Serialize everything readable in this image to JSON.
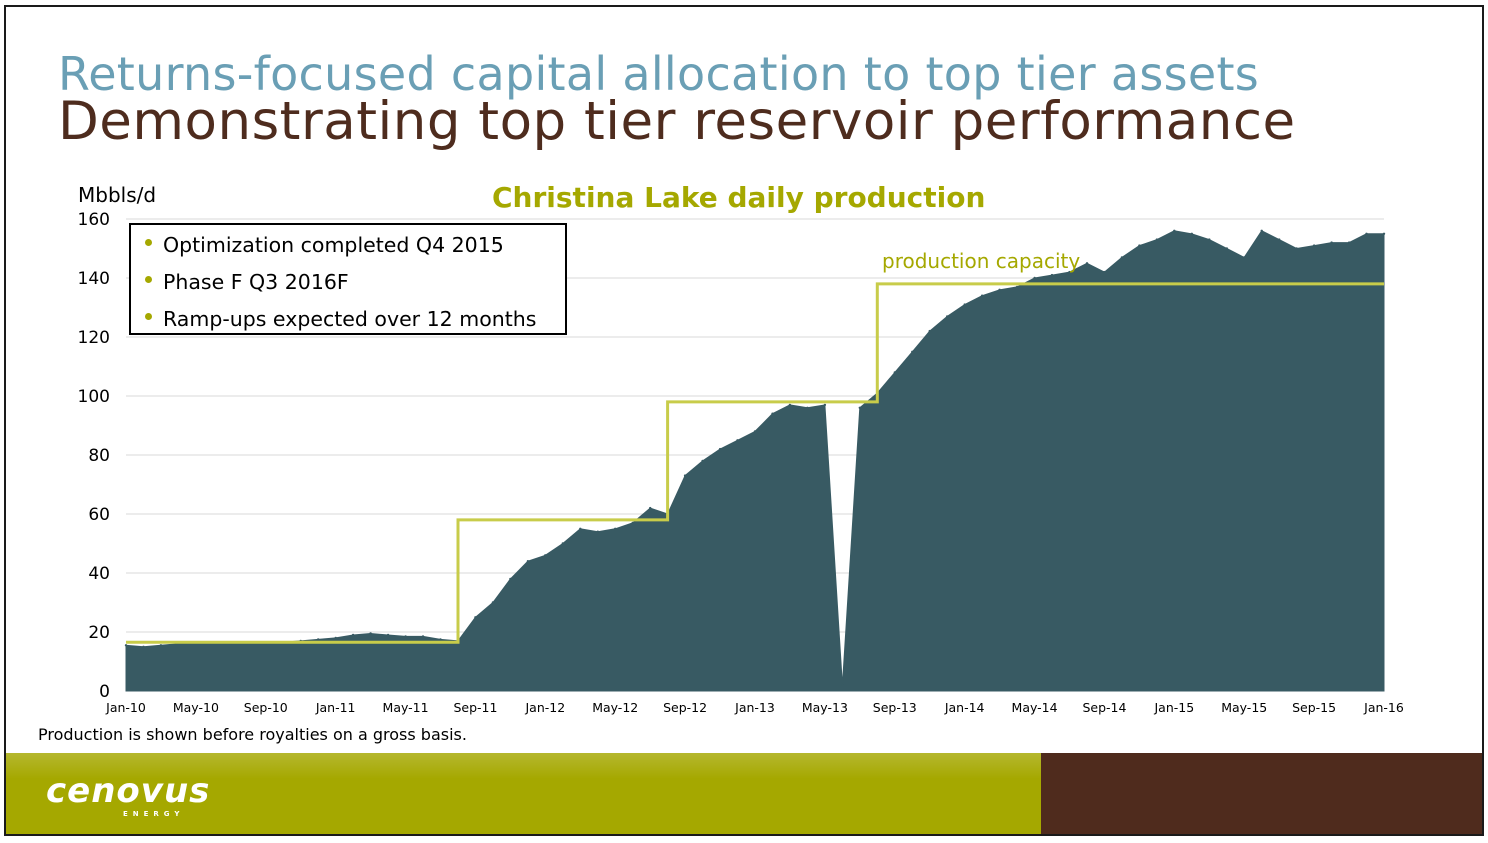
{
  "slide": {
    "supertitle": "Returns-focused capital allocation to top tier assets",
    "title": "Demonstrating top tier reservoir performance",
    "footnote": "Production is shown before royalties on a gross basis.",
    "logo_text": "cenovus",
    "logo_subtext": "ENERGY"
  },
  "colors": {
    "area": "#385a63",
    "capacity": "#c8cc4a",
    "supertitle": "#6a9fb5",
    "title": "#4e2c1e",
    "accent": "#a5a800",
    "footer_brown": "#4f2b1d"
  },
  "chart_data": {
    "type": "area",
    "title": "Christina Lake daily production",
    "ylabel": "Mbbls/d",
    "xlabel": "",
    "ylim": [
      0,
      160
    ],
    "xlim": [
      "2010-01",
      "2016-01"
    ],
    "yticks": [
      "0",
      "20",
      "40",
      "60",
      "80",
      "100",
      "120",
      "140",
      "160"
    ],
    "xticks": [
      "Jan-10",
      "May-10",
      "Sep-10",
      "Jan-11",
      "May-11",
      "Sep-11",
      "Jan-12",
      "May-12",
      "Sep-12",
      "Jan-13",
      "May-13",
      "Sep-13",
      "Jan-14",
      "May-14",
      "Sep-14",
      "Jan-15",
      "May-15",
      "Sep-15",
      "Jan-16"
    ],
    "grid": "horizontal",
    "legend": [
      "Optimization completed Q4 2015",
      "Phase F Q3 2016F",
      "Ramp-ups expected over 12 months"
    ],
    "annotations": [
      "production capacity"
    ],
    "series": [
      {
        "name": "Daily production",
        "points": [
          [
            "2010-01",
            15.5
          ],
          [
            "2010-02",
            15
          ],
          [
            "2010-03",
            15.5
          ],
          [
            "2010-04",
            16
          ],
          [
            "2010-05",
            16.5
          ],
          [
            "2010-06",
            16.5
          ],
          [
            "2010-07",
            16
          ],
          [
            "2010-08",
            16
          ],
          [
            "2010-09",
            16
          ],
          [
            "2010-10",
            16.5
          ],
          [
            "2010-11",
            17
          ],
          [
            "2010-12",
            17.5
          ],
          [
            "2011-01",
            18
          ],
          [
            "2011-02",
            19
          ],
          [
            "2011-03",
            19.5
          ],
          [
            "2011-04",
            19
          ],
          [
            "2011-05",
            18.5
          ],
          [
            "2011-06",
            18.5
          ],
          [
            "2011-07",
            17.5
          ],
          [
            "2011-08",
            17
          ],
          [
            "2011-09",
            25
          ],
          [
            "2011-10",
            30
          ],
          [
            "2011-11",
            38
          ],
          [
            "2011-12",
            44
          ],
          [
            "2012-01",
            46
          ],
          [
            "2012-02",
            50
          ],
          [
            "2012-03",
            55
          ],
          [
            "2012-04",
            54
          ],
          [
            "2012-05",
            55
          ],
          [
            "2012-06",
            57
          ],
          [
            "2012-07",
            62
          ],
          [
            "2012-08",
            60
          ],
          [
            "2012-09",
            73
          ],
          [
            "2012-10",
            78
          ],
          [
            "2012-11",
            82
          ],
          [
            "2012-12",
            85
          ],
          [
            "2013-01",
            88
          ],
          [
            "2013-02",
            94
          ],
          [
            "2013-03",
            97
          ],
          [
            "2013-04",
            96
          ],
          [
            "2013-05",
            97
          ],
          [
            "2013-06",
            2
          ],
          [
            "2013-07",
            96
          ],
          [
            "2013-08",
            101
          ],
          [
            "2013-09",
            108
          ],
          [
            "2013-10",
            115
          ],
          [
            "2013-11",
            122
          ],
          [
            "2013-12",
            127
          ],
          [
            "2014-01",
            131
          ],
          [
            "2014-02",
            134
          ],
          [
            "2014-03",
            136
          ],
          [
            "2014-04",
            137
          ],
          [
            "2014-05",
            140
          ],
          [
            "2014-06",
            141
          ],
          [
            "2014-07",
            142
          ],
          [
            "2014-08",
            145
          ],
          [
            "2014-09",
            142
          ],
          [
            "2014-10",
            147
          ],
          [
            "2014-11",
            151
          ],
          [
            "2014-12",
            153
          ],
          [
            "2015-01",
            156
          ],
          [
            "2015-02",
            155
          ],
          [
            "2015-03",
            153
          ],
          [
            "2015-04",
            150
          ],
          [
            "2015-05",
            147
          ],
          [
            "2015-06",
            156
          ],
          [
            "2015-07",
            153
          ],
          [
            "2015-08",
            150
          ],
          [
            "2015-09",
            151
          ],
          [
            "2015-10",
            152
          ],
          [
            "2015-11",
            152
          ],
          [
            "2015-12",
            155
          ],
          [
            "2016-01",
            155
          ]
        ]
      },
      {
        "name": "production capacity",
        "steps": [
          [
            "2010-01",
            16.5
          ],
          [
            "2011-08",
            16.5
          ],
          [
            "2011-08",
            58
          ],
          [
            "2012-08",
            58
          ],
          [
            "2012-08",
            98
          ],
          [
            "2013-08",
            98
          ],
          [
            "2013-08",
            138
          ],
          [
            "2016-01",
            138
          ]
        ]
      }
    ]
  }
}
